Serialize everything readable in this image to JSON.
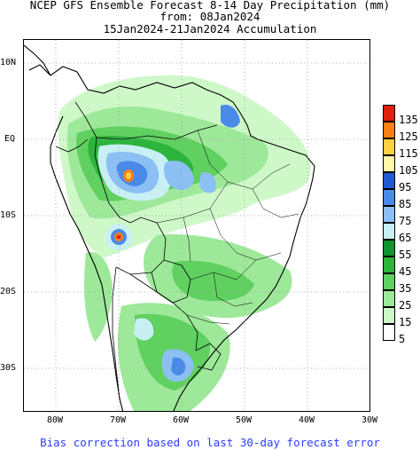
{
  "title": {
    "line1": "NCEP GFS Ensemble Forecast 8-14 Day Precipitation (mm)",
    "line2": "from: 08Jan2024",
    "line3": "15Jan2024-21Jan2024 Accumulation"
  },
  "footer": "Bias correction based on last 30-day forecast error",
  "lat_labels": [
    "10N",
    "EQ",
    "10S",
    "20S",
    "30S"
  ],
  "lon_labels": [
    "80W",
    "70W",
    "60W",
    "50W",
    "40W",
    "30W"
  ],
  "legend": {
    "labels": [
      "135",
      "125",
      "115",
      "105",
      "95",
      "85",
      "75",
      "65",
      "55",
      "45",
      "35",
      "25",
      "15",
      "5"
    ],
    "colors": [
      "#e0200e",
      "#ff8010",
      "#ffd040",
      "#fff8a8",
      "#1e5ad2",
      "#4a8ae8",
      "#8cc0f4",
      "#c8f0f4",
      "#0e9430",
      "#2cb43c",
      "#60d060",
      "#9ee89a",
      "#cef8c8",
      "#ffffff"
    ]
  },
  "map": {
    "land_color": "#ffffff",
    "border_color": "#000000",
    "grid_color": "#9a9a9a"
  }
}
